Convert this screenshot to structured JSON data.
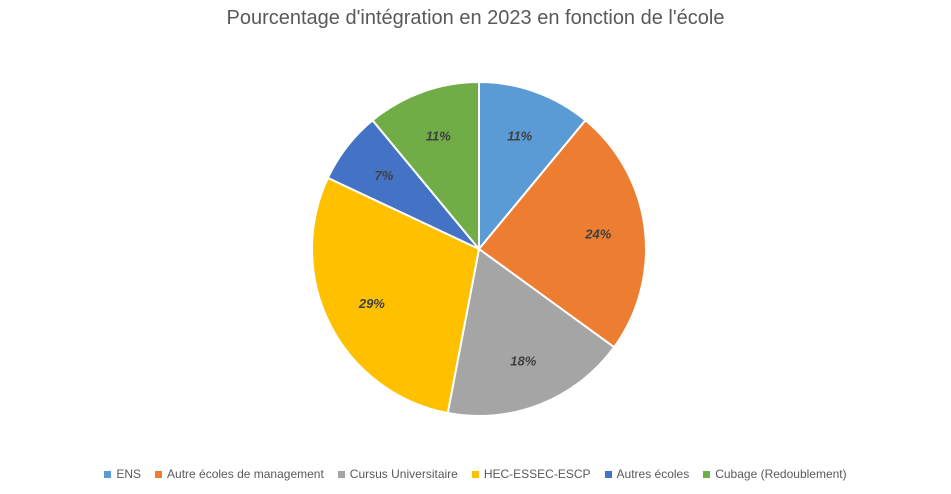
{
  "chart_data": {
    "type": "pie",
    "title": "Pourcentage d'intégration en 2023 en fonction de l'école",
    "slices": [
      {
        "label": "ENS",
        "value": 11,
        "display": "11%",
        "color": "#5B9BD5"
      },
      {
        "label": "Autre écoles de management",
        "value": 24,
        "display": "24%",
        "color": "#ED7D31"
      },
      {
        "label": "Cursus Universitaire",
        "value": 18,
        "display": "18%",
        "color": "#A5A5A5"
      },
      {
        "label": "HEC-ESSEC-ESCP",
        "value": 29,
        "display": "29%",
        "color": "#FFC000"
      },
      {
        "label": "Autres écoles",
        "value": 7,
        "display": "7%",
        "color": "#4472C4"
      },
      {
        "label": "Cubage (Redoublement)",
        "value": 11,
        "display": "11%",
        "color": "#70AD47"
      }
    ],
    "start_angle": "12 o'clock",
    "direction": "clockwise",
    "legend_position": "bottom",
    "data_labels": "inside, bold italic"
  }
}
